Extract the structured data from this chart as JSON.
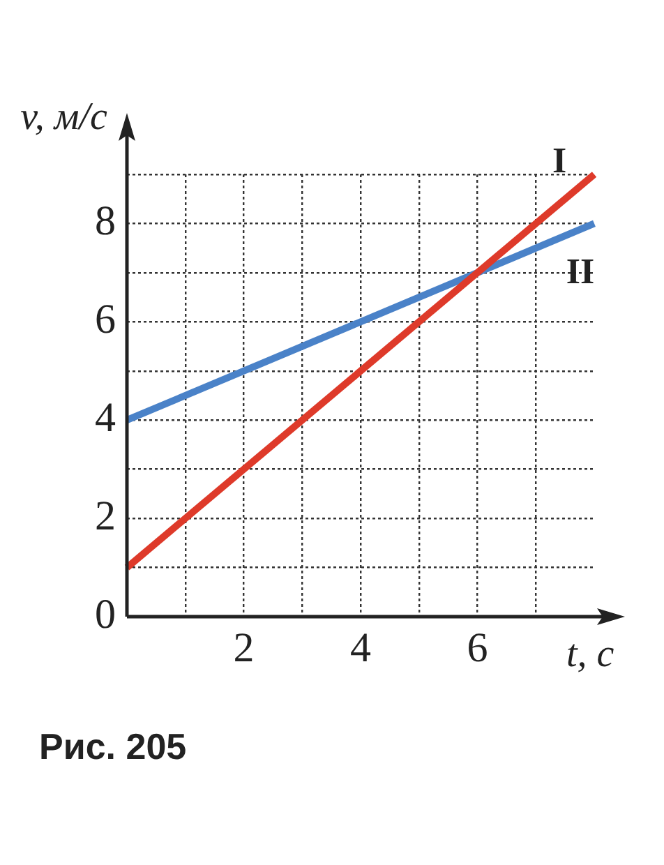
{
  "chart_data": {
    "type": "line",
    "xlabel": "t, с",
    "ylabel": "v, м/с",
    "annotations": [
      "Рис. 205"
    ],
    "x": [
      0,
      8
    ],
    "series": [
      {
        "name": "I",
        "color": "#de3a2a",
        "values": [
          1,
          9
        ]
      },
      {
        "name": "II",
        "color": "#4a82c8",
        "values": [
          4,
          8
        ]
      }
    ],
    "xlim": [
      0,
      8
    ],
    "ylim": [
      0,
      9
    ],
    "xticks": [
      {
        "value": 0,
        "label": null
      },
      {
        "value": 1,
        "label": null
      },
      2,
      {
        "value": 3,
        "label": null
      },
      4,
      {
        "value": 5,
        "label": null
      },
      6,
      {
        "value": 7,
        "label": null
      }
    ],
    "yticks": [
      0,
      {
        "value": 1,
        "label": null
      },
      2,
      {
        "value": 3,
        "label": null
      },
      4,
      {
        "value": 5,
        "label": null
      },
      6,
      {
        "value": 7,
        "label": null
      },
      8,
      {
        "value": 9,
        "label": null
      }
    ],
    "grid": true,
    "legend": false,
    "marker": "none",
    "line_style": "solid"
  }
}
